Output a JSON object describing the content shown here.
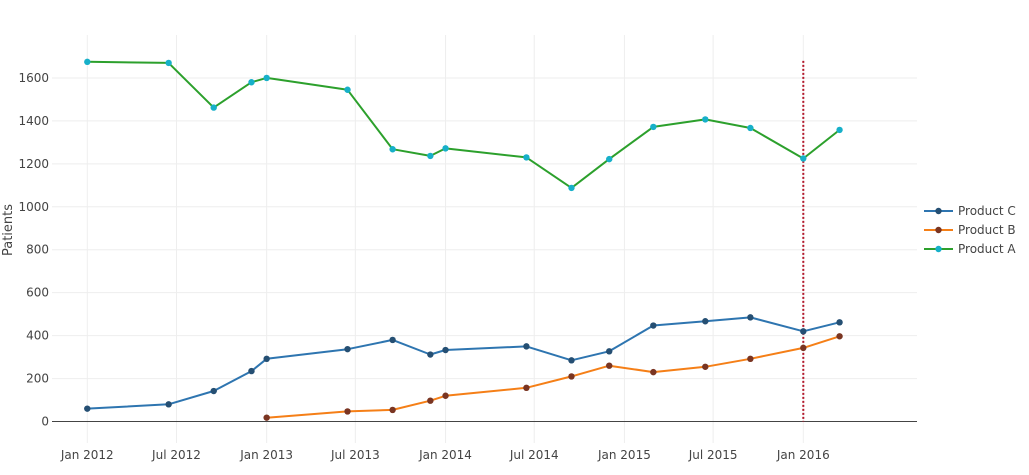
{
  "chart_data": {
    "type": "line",
    "ylabel": "Patients",
    "xlabel": "",
    "ylim": [
      -100,
      1800
    ],
    "xlim": [
      "2011-10-21",
      "2016-08-20"
    ],
    "x_ticks": [
      {
        "date": "2012-01-01",
        "label": "Jan 2012"
      },
      {
        "date": "2012-07-01",
        "label": "Jul 2012"
      },
      {
        "date": "2013-01-01",
        "label": "Jan 2013"
      },
      {
        "date": "2013-07-01",
        "label": "Jul 2013"
      },
      {
        "date": "2014-01-01",
        "label": "Jan 2014"
      },
      {
        "date": "2014-07-01",
        "label": "Jul 2014"
      },
      {
        "date": "2015-01-01",
        "label": "Jan 2015"
      },
      {
        "date": "2015-07-01",
        "label": "Jul 2015"
      },
      {
        "date": "2016-01-01",
        "label": "Jan 2016"
      }
    ],
    "y_ticks": [
      0,
      200,
      400,
      600,
      800,
      1000,
      1200,
      1400,
      1600
    ],
    "grid": true,
    "legend_position": "right",
    "reference_line": {
      "date": "2016-01-01",
      "color": "#b2182b",
      "style": "dotted"
    },
    "series": [
      {
        "name": "Product C",
        "line_color": "#2e75b0",
        "marker_color": "#254f73",
        "points": [
          {
            "x": "2012-01-01",
            "y": 60
          },
          {
            "x": "2012-06-15",
            "y": 80
          },
          {
            "x": "2012-09-15",
            "y": 142
          },
          {
            "x": "2012-12-01",
            "y": 235
          },
          {
            "x": "2013-01-01",
            "y": 292
          },
          {
            "x": "2013-06-15",
            "y": 337
          },
          {
            "x": "2013-09-15",
            "y": 380
          },
          {
            "x": "2013-12-01",
            "y": 312
          },
          {
            "x": "2014-01-01",
            "y": 333
          },
          {
            "x": "2014-06-15",
            "y": 350
          },
          {
            "x": "2014-09-15",
            "y": 285
          },
          {
            "x": "2014-12-01",
            "y": 327
          },
          {
            "x": "2015-03-01",
            "y": 447
          },
          {
            "x": "2015-06-15",
            "y": 467
          },
          {
            "x": "2015-09-15",
            "y": 485
          },
          {
            "x": "2016-01-01",
            "y": 420
          },
          {
            "x": "2016-03-15",
            "y": 462
          }
        ]
      },
      {
        "name": "Product B",
        "line_color": "#f57f17",
        "marker_color": "#7a3522",
        "points": [
          {
            "x": "2013-01-01",
            "y": 18
          },
          {
            "x": "2013-06-15",
            "y": 47
          },
          {
            "x": "2013-09-15",
            "y": 54
          },
          {
            "x": "2013-12-01",
            "y": 97
          },
          {
            "x": "2014-01-01",
            "y": 120
          },
          {
            "x": "2014-06-15",
            "y": 157
          },
          {
            "x": "2014-09-15",
            "y": 210
          },
          {
            "x": "2014-12-01",
            "y": 260
          },
          {
            "x": "2015-03-01",
            "y": 230
          },
          {
            "x": "2015-06-15",
            "y": 255
          },
          {
            "x": "2015-09-15",
            "y": 292
          },
          {
            "x": "2016-01-01",
            "y": 343
          },
          {
            "x": "2016-03-15",
            "y": 397
          }
        ]
      },
      {
        "name": "Product A",
        "line_color": "#2ca02c",
        "marker_color": "#17b0c9",
        "points": [
          {
            "x": "2012-01-01",
            "y": 1675
          },
          {
            "x": "2012-06-15",
            "y": 1670
          },
          {
            "x": "2012-09-15",
            "y": 1462
          },
          {
            "x": "2012-12-01",
            "y": 1580
          },
          {
            "x": "2013-01-01",
            "y": 1600
          },
          {
            "x": "2013-06-15",
            "y": 1545
          },
          {
            "x": "2013-09-15",
            "y": 1268
          },
          {
            "x": "2013-12-01",
            "y": 1237
          },
          {
            "x": "2014-01-01",
            "y": 1272
          },
          {
            "x": "2014-06-15",
            "y": 1230
          },
          {
            "x": "2014-09-15",
            "y": 1088
          },
          {
            "x": "2014-12-01",
            "y": 1222
          },
          {
            "x": "2015-03-01",
            "y": 1372
          },
          {
            "x": "2015-06-15",
            "y": 1407
          },
          {
            "x": "2015-09-15",
            "y": 1367
          },
          {
            "x": "2016-01-01",
            "y": 1225
          },
          {
            "x": "2016-03-15",
            "y": 1358
          }
        ]
      }
    ]
  }
}
